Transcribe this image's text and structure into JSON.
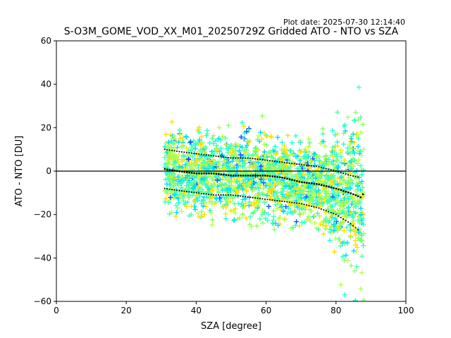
{
  "plot_date": "Plot date: 2025-07-30 12:14:40",
  "chart_data": {
    "type": "scatter",
    "title": "S-O3M_GOME_VOD_XX_M01_20250729Z Gridded ATO - NTO vs SZA",
    "xlabel": "SZA [degree]",
    "ylabel": "ATO - NTO [DU]",
    "xlim": [
      0,
      100
    ],
    "ylim": [
      -60,
      60
    ],
    "x_ticks": [
      "0",
      "20",
      "40",
      "60",
      "80",
      "100"
    ],
    "y_ticks": [
      "−60",
      "−40",
      "−20",
      "0",
      "20",
      "40",
      "60"
    ],
    "grid": false,
    "reference_line_y": 0,
    "sza_range": [
      31,
      88
    ],
    "point_colors": [
      "#ffe000",
      "#b7ff4a",
      "#4dffa8",
      "#00d9ff",
      "#25ffd0",
      "#8cff66",
      "#0a4fff"
    ],
    "summary_series": [
      {
        "x": [
          31,
          35,
          40,
          45,
          50,
          55,
          60,
          65,
          70,
          75,
          80,
          84,
          87,
          88
        ],
        "y": [
          1,
          0,
          -1,
          -1,
          -2,
          -2,
          -2,
          -3,
          -5,
          -6,
          -8,
          -10,
          -12,
          -10
        ]
      },
      {
        "x": [
          31,
          35,
          40,
          45,
          50,
          55,
          60,
          65,
          70,
          75,
          80,
          84,
          87
        ],
        "y": [
          10,
          9,
          8,
          7,
          6,
          6,
          5,
          4,
          3,
          2,
          0,
          -2,
          -3
        ]
      },
      {
        "x": [
          31,
          35,
          40,
          45,
          50,
          55,
          60,
          65,
          70,
          75,
          80,
          84,
          87
        ],
        "y": [
          -8,
          -9,
          -10,
          -11,
          -11,
          -12,
          -13,
          -14,
          -15,
          -17,
          -20,
          -24,
          -28
        ]
      }
    ]
  }
}
